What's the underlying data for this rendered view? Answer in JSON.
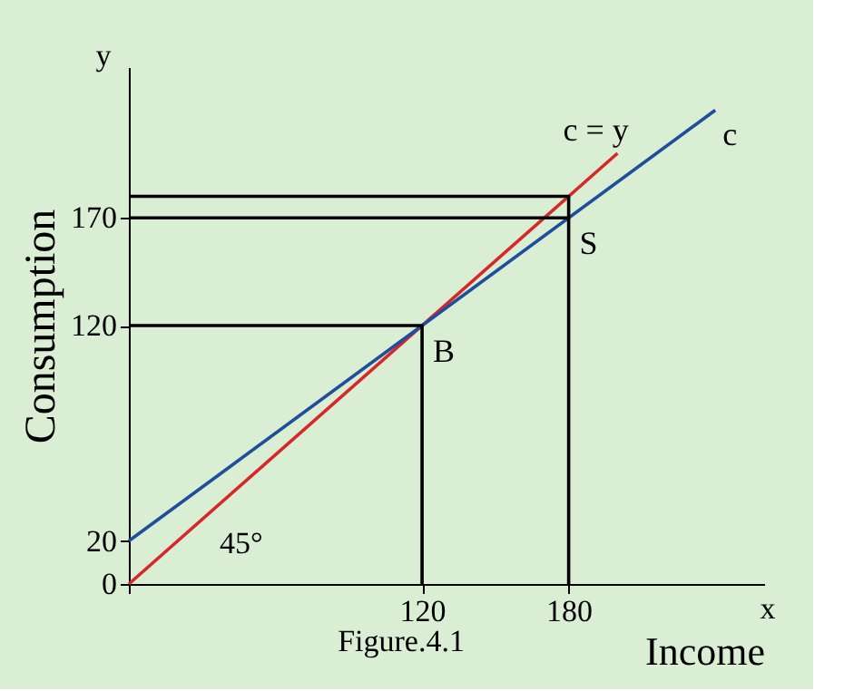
{
  "chart_data": {
    "type": "line",
    "xlabel": "Income",
    "ylabel": "Consumption",
    "xlim": [
      0,
      260
    ],
    "ylim": [
      0,
      240
    ],
    "xticks": [
      {
        "value": 0,
        "label": null
      },
      120,
      180
    ],
    "yticks": [
      0,
      20,
      120,
      170
    ],
    "grid": false,
    "marker": "none",
    "line_style": "solid",
    "series": [
      {
        "name": "c = y",
        "color": "#d62828",
        "x": [
          0,
          200
        ],
        "values": [
          0,
          200
        ]
      },
      {
        "name": "c",
        "color": "#1f4e9c",
        "x": [
          0,
          240
        ],
        "values": [
          20,
          220
        ]
      },
      {
        "color": "#000000",
        "x": [
          0,
          120,
          120
        ],
        "values": [
          120,
          120,
          0
        ]
      },
      {
        "color": "#000000",
        "x": [
          0,
          180
        ],
        "values": [
          170,
          170
        ]
      },
      {
        "color": "#000000",
        "x": [
          0,
          180,
          180
        ],
        "values": [
          180,
          180,
          0
        ]
      }
    ],
    "annotations": [
      {
        "text": "B",
        "x": 120,
        "y": 120
      },
      {
        "text": "S",
        "x": 180,
        "y": 170
      },
      "45°",
      "y",
      "x",
      "Figure.4.1"
    ]
  }
}
